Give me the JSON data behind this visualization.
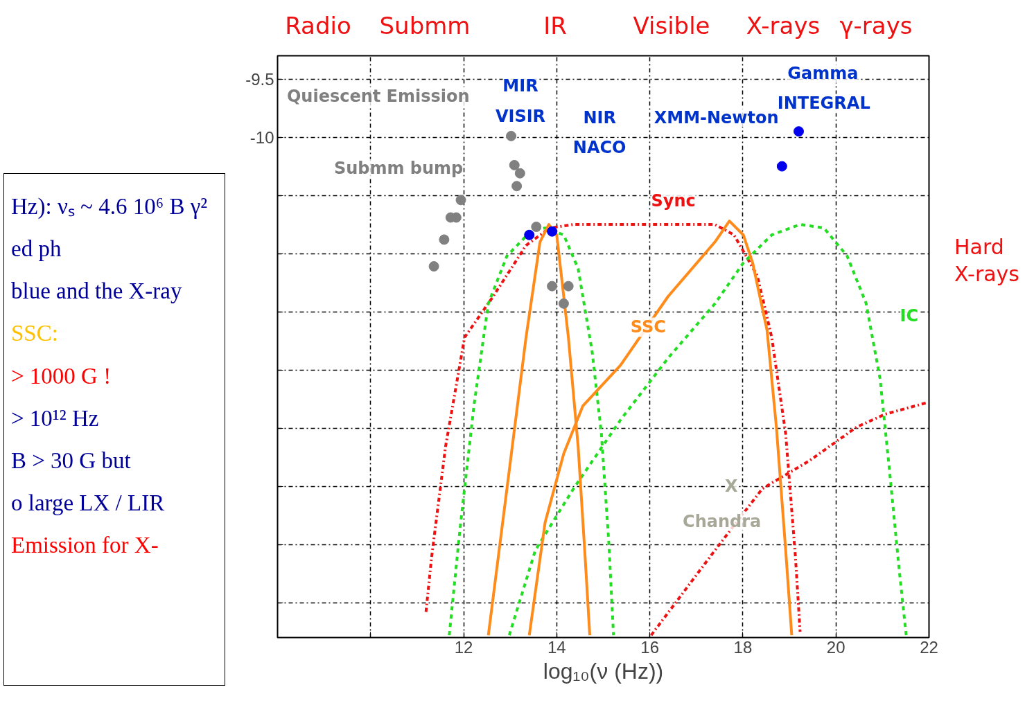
{
  "chart_data": {
    "type": "line",
    "xlabel": "log₁₀(ν (Hz))",
    "xlim": [
      8,
      22
    ],
    "xticks": [
      {
        "value": 8,
        "label": null
      },
      {
        "value": 10,
        "label": null
      },
      12,
      14,
      16,
      18,
      20,
      22
    ],
    "ylim": [
      -14.3,
      -9.3
    ],
    "yticks": [
      -9.5,
      -10,
      {
        "value": -10.5,
        "label": null
      },
      {
        "value": -11,
        "label": null
      },
      {
        "value": -11.5,
        "label": null
      },
      {
        "value": -12,
        "label": null
      },
      {
        "value": -12.5,
        "label": null
      },
      {
        "value": -13,
        "label": null
      },
      {
        "value": -13.5,
        "label": null
      },
      {
        "value": -14,
        "label": null
      }
    ],
    "grid": true,
    "series": [
      {
        "name": "Sync",
        "color": "#ee1111",
        "line_style": "dashdot",
        "x": [
          11.19,
          11.31,
          11.61,
          12.02,
          12.63,
          13.34,
          13.85,
          14.36,
          17.4,
          17.81,
          18.31,
          18.62,
          18.92,
          19.13,
          19.23
        ],
        "values": [
          -14.08,
          -13.61,
          -12.66,
          -11.72,
          -11.37,
          -10.93,
          -10.78,
          -10.75,
          -10.75,
          -10.84,
          -11.19,
          -11.72,
          -12.55,
          -13.61,
          -14.25
        ]
      },
      {
        "color": "#ee1111",
        "line_style": "dashdot",
        "x": [
          16.03,
          17.4,
          18.42,
          19.43,
          20.45,
          21.06,
          21.97
        ],
        "values": [
          -14.28,
          -13.55,
          -13.02,
          -12.78,
          -12.49,
          -12.38,
          -12.28
        ]
      },
      {
        "color": "#22dd22",
        "line_style": "dashed",
        "x": [
          11.69,
          11.92,
          12.22,
          12.53,
          12.93,
          13.44,
          13.75,
          14.15,
          14.46,
          14.76,
          14.96,
          15.12,
          15.22
        ],
        "values": [
          -14.28,
          -13.37,
          -12.31,
          -11.43,
          -11.02,
          -10.81,
          -10.78,
          -10.84,
          -11.13,
          -11.84,
          -12.55,
          -13.49,
          -14.28
        ]
      },
      {
        "name": "IC",
        "color": "#22dd22",
        "line_style": "dashed",
        "x": [
          12.98,
          13.54,
          14.36,
          15.37,
          16.39,
          17.4,
          18.01,
          18.62,
          19.23,
          19.74,
          20.24,
          20.65,
          20.95,
          21.16,
          21.36,
          21.51
        ],
        "values": [
          -14.28,
          -13.55,
          -13.02,
          -12.43,
          -11.9,
          -11.43,
          -11.08,
          -10.84,
          -10.75,
          -10.78,
          -11.02,
          -11.43,
          -12.08,
          -12.9,
          -13.72,
          -14.28
        ]
      },
      {
        "color": "#ff8c1a",
        "line_style": "solid",
        "x": [
          12.53,
          12.93,
          13.34,
          13.64,
          13.83,
          14.0,
          14.25,
          14.46,
          14.61,
          14.71
        ],
        "values": [
          -14.28,
          -13.02,
          -11.72,
          -10.9,
          -10.75,
          -10.84,
          -11.72,
          -12.66,
          -13.61,
          -14.28
        ]
      },
      {
        "name": "SSC",
        "color": "#ff8c1a",
        "line_style": "solid",
        "x": [
          13.41,
          13.75,
          14.15,
          14.56,
          15.37,
          16.39,
          17.4,
          17.71,
          18.01,
          18.21,
          18.52,
          18.72,
          18.92,
          19.05
        ],
        "values": [
          -14.28,
          -13.31,
          -12.72,
          -12.31,
          -11.96,
          -11.37,
          -10.9,
          -10.72,
          -10.84,
          -11.08,
          -11.66,
          -12.49,
          -13.55,
          -14.28
        ]
      },
      {
        "type": "scatter",
        "color": "#808080",
        "marker": "circle",
        "x": [
          11.36,
          11.58,
          11.72,
          11.84,
          11.94,
          13.02,
          13.09,
          13.21,
          13.14,
          13.56,
          13.9,
          14.15,
          14.25
        ],
        "values": [
          -11.11,
          -10.88,
          -10.69,
          -10.69,
          -10.54,
          -9.99,
          -10.24,
          -10.31,
          -10.42,
          -10.77,
          -11.28,
          -11.43,
          -11.28
        ]
      },
      {
        "type": "scatter",
        "color": "#0000ee",
        "marker": "circle",
        "x": [
          13.41,
          13.9,
          18.84,
          19.2
        ],
        "values": [
          -10.84,
          -10.81,
          -10.25,
          -9.95
        ]
      }
    ],
    "annotations": [
      "Radio",
      "Submm",
      "IR",
      "Visible",
      "X-rays",
      "γ-rays",
      "Quiescent Emission",
      "Submm bump",
      "MIR",
      "VISIR",
      "NIR",
      "NACO",
      "XMM-Newton",
      "Gamma",
      "INTEGRAL",
      "X",
      "Chandra",
      "Hard X-rays",
      "Hz): νₛ ~ 4.6 10⁶ B γ²",
      "ed ph",
      "blue and the X-ray",
      "SSC:",
      "> 1000 G !",
      "> 10¹² Hz",
      "B > 30 G but",
      "o large LX / LIR",
      "Emission for  X-"
    ]
  }
}
